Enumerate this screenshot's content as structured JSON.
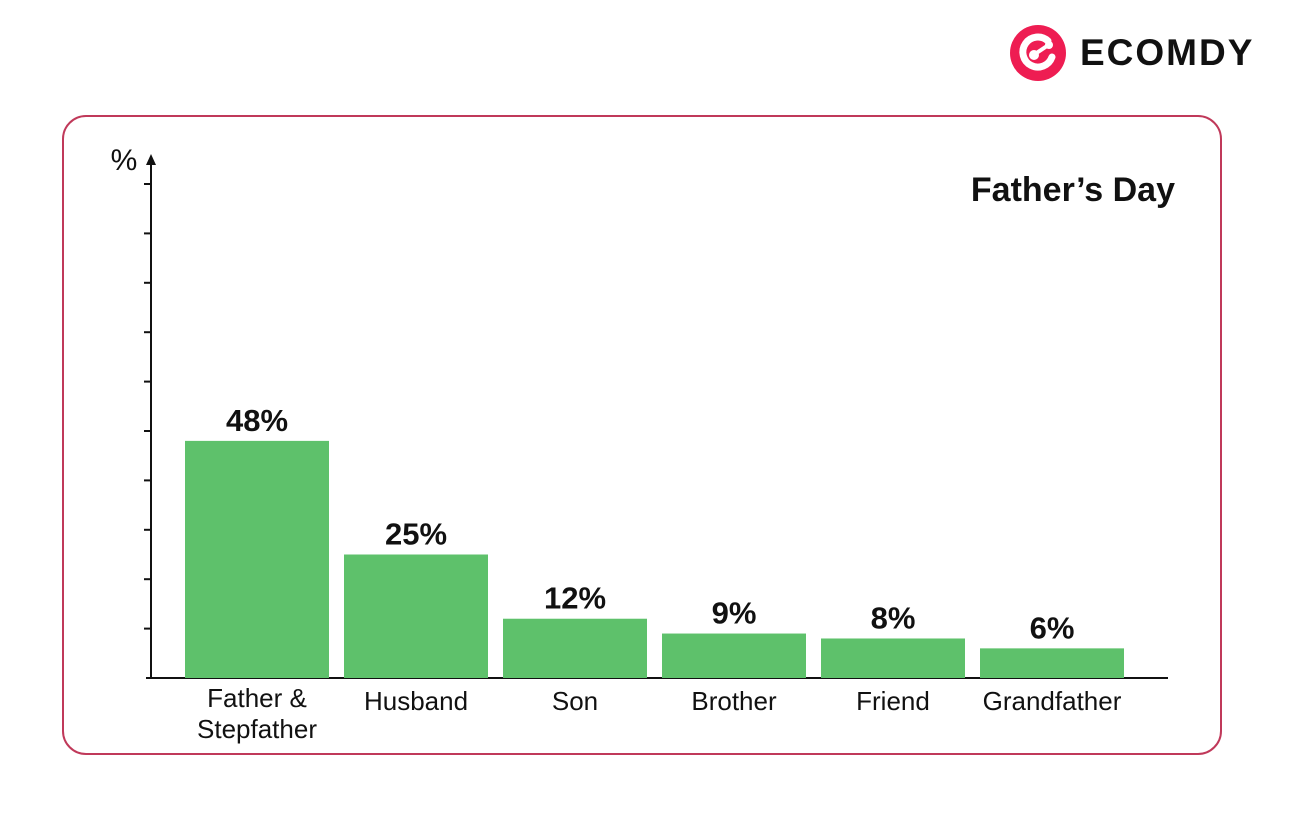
{
  "brand": {
    "name": "ECOMDY",
    "color": "#ee1d52",
    "icon": "ecomdy-logo-icon"
  },
  "frame_color": "#c0395a",
  "bar_color": "#5ec16b",
  "chart_data": {
    "type": "bar",
    "title": "Father’s Day",
    "ylabel": "%",
    "xlabel": "",
    "ylim": [
      0,
      100
    ],
    "categories": [
      [
        "Father &",
        "Stepfather"
      ],
      [
        "Husband"
      ],
      [
        "Son"
      ],
      [
        "Brother"
      ],
      [
        "Friend"
      ],
      [
        "Grandfather"
      ]
    ],
    "values": [
      48,
      25,
      12,
      9,
      8,
      6
    ],
    "data_labels": [
      "48%",
      "25%",
      "12%",
      "9%",
      "8%",
      "6%"
    ],
    "grid": false,
    "legend": "none"
  }
}
